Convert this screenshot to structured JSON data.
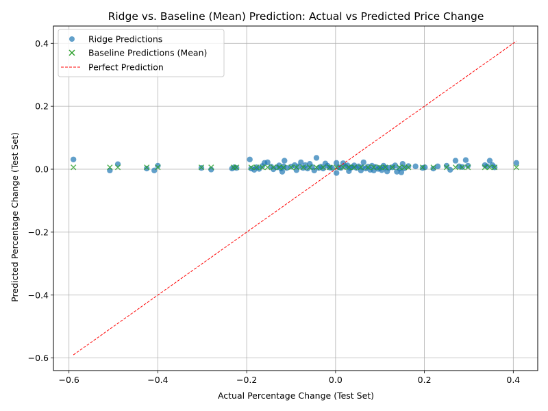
{
  "chart_data": {
    "type": "scatter",
    "title": "Ridge vs. Baseline (Mean) Prediction: Actual vs Predicted Price Change",
    "xlabel": "Actual Percentage Change (Test Set)",
    "ylabel": "Predicted Percentage Change (Test Set)",
    "xlim": [
      -0.635,
      0.455
    ],
    "ylim": [
      -0.64,
      0.455
    ],
    "xticks": [
      -0.6,
      -0.4,
      -0.2,
      0.0,
      0.2,
      0.4
    ],
    "xtick_labels": [
      "−0.6",
      "−0.4",
      "−0.2",
      "0.0",
      "0.2",
      "0.4"
    ],
    "yticks": [
      -0.6,
      -0.4,
      -0.2,
      0.0,
      0.2,
      0.4
    ],
    "ytick_labels": [
      "−0.6",
      "−0.4",
      "−0.2",
      "0.0",
      "0.2",
      "0.4"
    ],
    "grid": true,
    "legend_position": "top-left",
    "series": [
      {
        "name": "Ridge Predictions",
        "marker": "circle",
        "color": "#1f77b4",
        "points": [
          [
            -0.59,
            0.031
          ],
          [
            -0.508,
            -0.004
          ],
          [
            -0.49,
            0.016
          ],
          [
            -0.425,
            0.002
          ],
          [
            -0.408,
            -0.004
          ],
          [
            -0.4,
            0.011
          ],
          [
            -0.302,
            0.004
          ],
          [
            -0.28,
            -0.001
          ],
          [
            -0.233,
            0.002
          ],
          [
            -0.228,
            0.006
          ],
          [
            -0.223,
            0.004
          ],
          [
            -0.193,
            0.031
          ],
          [
            -0.19,
            0.002
          ],
          [
            -0.183,
            -0.002
          ],
          [
            -0.178,
            0.006
          ],
          [
            -0.172,
            0.001
          ],
          [
            -0.165,
            0.01
          ],
          [
            -0.16,
            0.02
          ],
          [
            -0.153,
            0.022
          ],
          [
            -0.145,
            0.008
          ],
          [
            -0.14,
            0.0
          ],
          [
            -0.132,
            0.006
          ],
          [
            -0.127,
            0.012
          ],
          [
            -0.123,
            0.002
          ],
          [
            -0.12,
            -0.008
          ],
          [
            -0.117,
            0.009
          ],
          [
            -0.115,
            0.027
          ],
          [
            -0.11,
            0.004
          ],
          [
            -0.1,
            0.008
          ],
          [
            -0.092,
            0.013
          ],
          [
            -0.088,
            -0.003
          ],
          [
            -0.083,
            0.009
          ],
          [
            -0.078,
            0.022
          ],
          [
            -0.073,
            0.004
          ],
          [
            -0.068,
            0.013
          ],
          [
            -0.063,
            0.002
          ],
          [
            -0.058,
            0.017
          ],
          [
            -0.053,
            0.007
          ],
          [
            -0.048,
            -0.004
          ],
          [
            -0.043,
            0.036
          ],
          [
            -0.038,
            0.004
          ],
          [
            -0.033,
            0.008
          ],
          [
            -0.028,
            0.002
          ],
          [
            -0.023,
            0.018
          ],
          [
            -0.018,
            0.011
          ],
          [
            -0.013,
            0.005
          ],
          [
            -0.008,
            0.004
          ],
          [
            0.002,
            0.02
          ],
          [
            0.002,
            -0.012
          ],
          [
            0.007,
            0.006
          ],
          [
            0.012,
            0.004
          ],
          [
            0.017,
            0.019
          ],
          [
            0.022,
            0.009
          ],
          [
            0.027,
            0.012
          ],
          [
            0.03,
            -0.006
          ],
          [
            0.033,
            0.004
          ],
          [
            0.037,
            0.006
          ],
          [
            0.042,
            0.012
          ],
          [
            0.047,
            0.004
          ],
          [
            0.052,
            0.009
          ],
          [
            0.057,
            -0.004
          ],
          [
            0.06,
            0.006
          ],
          [
            0.063,
            0.022
          ],
          [
            0.068,
            0.002
          ],
          [
            0.073,
            0.008
          ],
          [
            0.078,
            -0.002
          ],
          [
            0.082,
            0.011
          ],
          [
            0.086,
            -0.004
          ],
          [
            0.09,
            0.007
          ],
          [
            0.096,
            0.001
          ],
          [
            0.1,
            0.004
          ],
          [
            0.104,
            -0.003
          ],
          [
            0.108,
            0.011
          ],
          [
            0.112,
            0.005
          ],
          [
            0.116,
            -0.007
          ],
          [
            0.12,
            0.004
          ],
          [
            0.128,
            0.006
          ],
          [
            0.134,
            0.012
          ],
          [
            0.138,
            -0.008
          ],
          [
            0.144,
            0.002
          ],
          [
            0.148,
            -0.01
          ],
          [
            0.151,
            0.017
          ],
          [
            0.155,
            0.003
          ],
          [
            0.164,
            0.01
          ],
          [
            0.18,
            0.009
          ],
          [
            0.196,
            0.004
          ],
          [
            0.201,
            0.006
          ],
          [
            0.22,
            0.002
          ],
          [
            0.23,
            0.009
          ],
          [
            0.25,
            0.011
          ],
          [
            0.258,
            -0.002
          ],
          [
            0.27,
            0.027
          ],
          [
            0.278,
            0.009
          ],
          [
            0.285,
            0.007
          ],
          [
            0.293,
            0.029
          ],
          [
            0.298,
            0.011
          ],
          [
            0.336,
            0.013
          ],
          [
            0.341,
            0.009
          ],
          [
            0.347,
            0.027
          ],
          [
            0.353,
            0.013
          ],
          [
            0.358,
            0.006
          ],
          [
            0.407,
            0.02
          ]
        ]
      },
      {
        "name": "Baseline Predictions (Mean)",
        "marker": "x",
        "color": "#2ca02c",
        "points": [
          [
            -0.59,
            0.006
          ],
          [
            -0.508,
            0.006
          ],
          [
            -0.49,
            0.006
          ],
          [
            -0.425,
            0.006
          ],
          [
            -0.4,
            0.006
          ],
          [
            -0.302,
            0.006
          ],
          [
            -0.28,
            0.006
          ],
          [
            -0.23,
            0.006
          ],
          [
            -0.223,
            0.006
          ],
          [
            -0.19,
            0.006
          ],
          [
            -0.178,
            0.006
          ],
          [
            -0.165,
            0.006
          ],
          [
            -0.153,
            0.006
          ],
          [
            -0.14,
            0.006
          ],
          [
            -0.127,
            0.006
          ],
          [
            -0.117,
            0.006
          ],
          [
            -0.1,
            0.006
          ],
          [
            -0.088,
            0.006
          ],
          [
            -0.073,
            0.006
          ],
          [
            -0.058,
            0.006
          ],
          [
            -0.043,
            0.006
          ],
          [
            -0.028,
            0.006
          ],
          [
            -0.013,
            0.006
          ],
          [
            0.002,
            0.006
          ],
          [
            0.017,
            0.006
          ],
          [
            0.03,
            0.006
          ],
          [
            0.042,
            0.006
          ],
          [
            0.057,
            0.006
          ],
          [
            0.073,
            0.006
          ],
          [
            0.086,
            0.006
          ],
          [
            0.1,
            0.006
          ],
          [
            0.112,
            0.006
          ],
          [
            0.128,
            0.006
          ],
          [
            0.144,
            0.006
          ],
          [
            0.155,
            0.006
          ],
          [
            0.164,
            0.006
          ],
          [
            0.196,
            0.006
          ],
          [
            0.22,
            0.006
          ],
          [
            0.25,
            0.006
          ],
          [
            0.27,
            0.006
          ],
          [
            0.285,
            0.006
          ],
          [
            0.298,
            0.006
          ],
          [
            0.336,
            0.006
          ],
          [
            0.347,
            0.006
          ],
          [
            0.358,
            0.006
          ],
          [
            0.407,
            0.006
          ]
        ]
      },
      {
        "name": "Perfect Prediction",
        "marker": "dashed-line",
        "color": "#ff0000",
        "points": [
          [
            -0.59,
            -0.59
          ],
          [
            0.407,
            0.407
          ]
        ]
      }
    ]
  }
}
